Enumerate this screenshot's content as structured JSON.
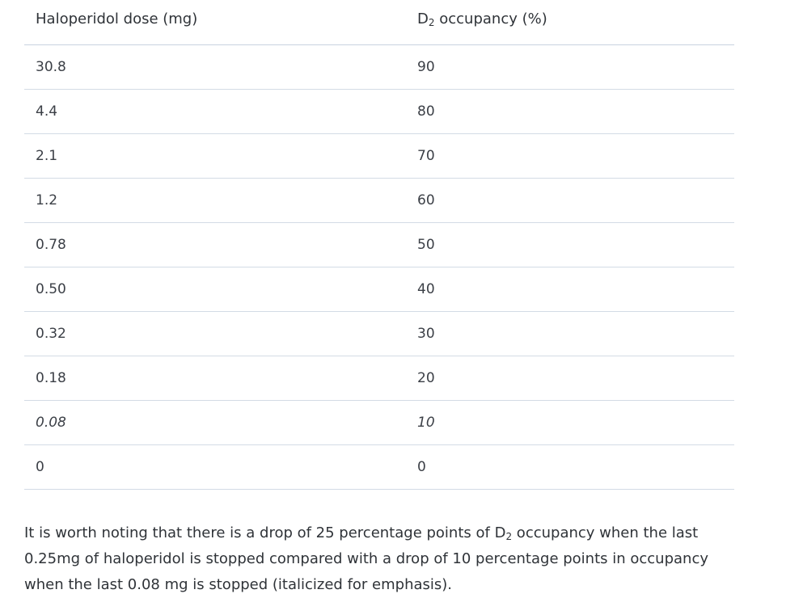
{
  "table": {
    "headers": {
      "dose": "Haloperidol dose (mg)",
      "occ_prefix": "D",
      "occ_sub": "2",
      "occ_suffix": " occupancy (%)"
    },
    "rows": [
      {
        "dose": "30.8",
        "occupancy": "90",
        "italic": false
      },
      {
        "dose": "4.4",
        "occupancy": "80",
        "italic": false
      },
      {
        "dose": "2.1",
        "occupancy": "70",
        "italic": false
      },
      {
        "dose": "1.2",
        "occupancy": "60",
        "italic": false
      },
      {
        "dose": "0.78",
        "occupancy": "50",
        "italic": false
      },
      {
        "dose": "0.50",
        "occupancy": "40",
        "italic": false
      },
      {
        "dose": "0.32",
        "occupancy": "30",
        "italic": false
      },
      {
        "dose": "0.18",
        "occupancy": "20",
        "italic": false
      },
      {
        "dose": "0.08",
        "occupancy": "10",
        "italic": true
      },
      {
        "dose": "0",
        "occupancy": "0",
        "italic": false
      }
    ]
  },
  "note": {
    "part1": "It is worth noting that there is a drop of 25 percentage points of D",
    "sub": "2",
    "part2": " occupancy when the last 0.25mg of haloperidol is stopped compared with a drop of 10 percentage points in occupancy when the last 0.08 mg is stopped (italicized for emphasis)."
  }
}
